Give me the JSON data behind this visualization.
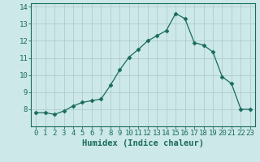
{
  "xlabel": "Humidex (Indice chaleur)",
  "ylabel": "",
  "x": [
    0,
    1,
    2,
    3,
    4,
    5,
    6,
    7,
    8,
    9,
    10,
    11,
    12,
    13,
    14,
    15,
    16,
    17,
    18,
    19,
    20,
    21,
    22,
    23
  ],
  "y": [
    7.8,
    7.8,
    7.7,
    7.9,
    8.2,
    8.4,
    8.5,
    8.6,
    9.4,
    10.3,
    11.05,
    11.5,
    12.0,
    12.3,
    12.6,
    13.6,
    13.3,
    11.9,
    11.75,
    11.35,
    9.9,
    9.5,
    8.0,
    8.0
  ],
  "line_color": "#1a6b5e",
  "marker": "D",
  "marker_size": 2.5,
  "bg_color": "#cce8e8",
  "grid_color": "#b0cccc",
  "axis_color": "#1a6b5e",
  "text_color": "#1a6b5e",
  "ylim": [
    7.0,
    14.2
  ],
  "xlim": [
    -0.5,
    23.5
  ],
  "yticks": [
    8,
    9,
    10,
    11,
    12,
    13,
    14
  ],
  "xticks": [
    0,
    1,
    2,
    3,
    4,
    5,
    6,
    7,
    8,
    9,
    10,
    11,
    12,
    13,
    14,
    15,
    16,
    17,
    18,
    19,
    20,
    21,
    22,
    23
  ],
  "tick_fontsize": 6.5,
  "label_fontsize": 7.5
}
